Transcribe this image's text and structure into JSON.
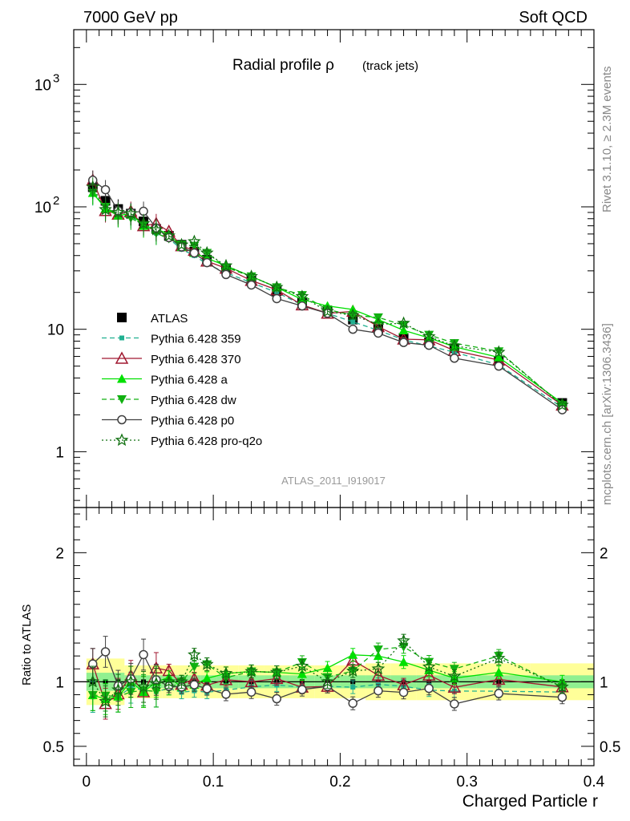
{
  "header": {
    "left": "7000 GeV pp",
    "right": "Soft QCD"
  },
  "side_labels": {
    "rivet": "Rivet 3.1.10, ≥ 2.3M events",
    "mcplots": "mcplots.cern.ch [arXiv:1306.3436]"
  },
  "watermark": "ATLAS_2011_I919017",
  "chart_data": [
    {
      "type": "line",
      "title": "Radial profile ρ (track jets)",
      "title_main": "Radial profile ρ",
      "title_sub": "(track jets)",
      "yscale": "log",
      "xlim": [
        -0.01,
        0.4
      ],
      "ylim": [
        0.35,
        2800
      ],
      "ytick_labels": [
        "1",
        "10",
        "10²",
        "10³"
      ],
      "ytick_values": [
        1,
        10,
        100,
        1000
      ],
      "legend_placement": "left",
      "x": [
        0.005,
        0.015,
        0.025,
        0.035,
        0.045,
        0.055,
        0.065,
        0.075,
        0.085,
        0.095,
        0.11,
        0.13,
        0.15,
        0.17,
        0.19,
        0.21,
        0.23,
        0.25,
        0.27,
        0.29,
        0.325,
        0.375
      ],
      "series": [
        {
          "name": "ATLAS",
          "color": "#000000",
          "marker": "square",
          "line": "none",
          "values": [
            145,
            112,
            96,
            88,
            76,
            66,
            58,
            49,
            43,
            37,
            31,
            25,
            20.5,
            16.5,
            14,
            12,
            10,
            8.5,
            7.8,
            7,
            5.5,
            2.5
          ],
          "band_inner": 0.05,
          "band_outer": 0.15
        },
        {
          "name": "Pythia 6.428 359",
          "color": "#20b090",
          "marker": "small-square",
          "line": "dashed",
          "values": [
            128,
            100,
            85,
            84,
            71,
            61,
            55,
            45,
            40,
            34,
            29,
            24,
            20,
            15.8,
            13.5,
            11.5,
            9.8,
            8.2,
            7.3,
            6.5,
            5.1,
            2.3
          ]
        },
        {
          "name": "Pythia 6.428 370",
          "color": "#a01830",
          "marker": "open-triangle",
          "line": "solid",
          "values": [
            165,
            93,
            87,
            92,
            70,
            73,
            63,
            48,
            44,
            36,
            31.5,
            25,
            21,
            15.8,
            13.5,
            14,
            10.5,
            8.3,
            8.2,
            6.7,
            5.6,
            2.4
          ]
        },
        {
          "name": "Pythia 6.428 a",
          "color": "#00e000",
          "marker": "triangle",
          "line": "solid",
          "values": [
            130,
            97,
            85,
            88,
            70,
            66,
            60,
            47,
            42,
            38,
            33,
            27,
            22,
            17.5,
            15.5,
            14.5,
            12,
            9.8,
            8.5,
            7.2,
            5.9,
            2.5
          ]
        },
        {
          "name": "Pythia 6.428 dw",
          "color": "#10b010",
          "marker": "down-triangle",
          "line": "dashed",
          "values": [
            130,
            100,
            85,
            81,
            71,
            61,
            55,
            49,
            48,
            42,
            32,
            27,
            22,
            19,
            14.5,
            13,
            12.5,
            10.8,
            9,
            7.7,
            6.6,
            2.4
          ]
        },
        {
          "name": "Pythia 6.428 p0",
          "color": "#404040",
          "marker": "open-circle",
          "line": "solid",
          "values": [
            165,
            138,
            93,
            90,
            92,
            67,
            56,
            47,
            42,
            35,
            28,
            23,
            17.8,
            15.5,
            13.5,
            10,
            9.3,
            7.8,
            7.4,
            5.8,
            5,
            2.2
          ]
        },
        {
          "name": "Pythia 6.428 pro-q2o",
          "color": "#107010",
          "marker": "open-star",
          "line": "dotted",
          "values": [
            145,
            95,
            90,
            88,
            73,
            65,
            58,
            49,
            52,
            42,
            33,
            27,
            22,
            18.5,
            14,
            13,
            11,
            11.2,
            8.7,
            7.3,
            6.5,
            2.4
          ]
        }
      ]
    },
    {
      "type": "line",
      "ylabel": "Ratio to ATLAS",
      "xlabel": "Charged Particle r",
      "xlim": [
        -0.01,
        0.4
      ],
      "ylim": [
        0.35,
        2.35
      ],
      "ytick_labels": [
        "0.5",
        "1",
        "2"
      ],
      "ytick_values": [
        0.5,
        1,
        2
      ],
      "xtick_labels": [
        "0",
        "0.1",
        "0.2",
        "0.3",
        "0.4"
      ],
      "xtick_values": [
        0,
        0.1,
        0.2,
        0.3,
        0.4
      ],
      "note": "ratios computed as series / ATLAS"
    }
  ]
}
